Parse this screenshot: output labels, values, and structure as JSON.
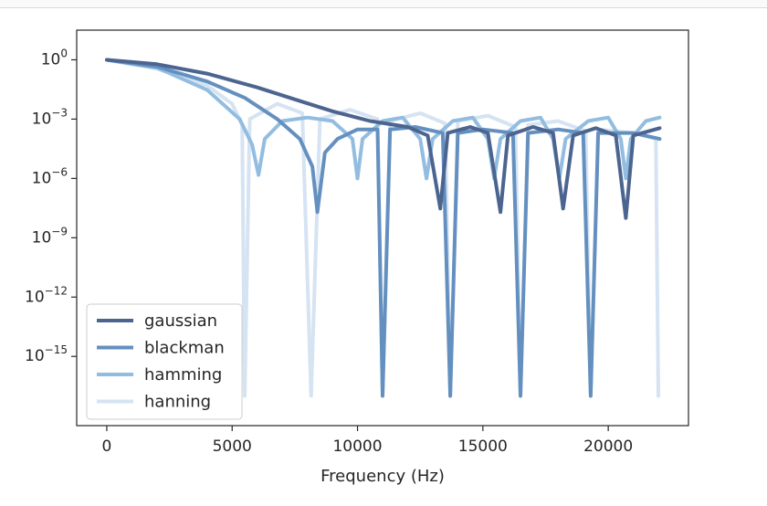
{
  "chart_data": {
    "type": "line",
    "xlabel": "Frequency (Hz)",
    "ylabel": "",
    "xlim": [
      -1200,
      23200
    ],
    "ylim_log10": [
      -18.5,
      1.5
    ],
    "y_scale": "log",
    "grid": false,
    "legend_position": "lower-left",
    "x_ticks": [
      0,
      5000,
      10000,
      15000,
      20000
    ],
    "x_tick_labels": [
      "0",
      "5000",
      "10000",
      "15000",
      "20000"
    ],
    "y_ticks": [
      1,
      0.001,
      1e-06,
      1e-09,
      1e-12,
      1e-15
    ],
    "y_tick_labels": [
      {
        "base": "10",
        "exp": "0"
      },
      {
        "base": "10",
        "exp": "−3"
      },
      {
        "base": "10",
        "exp": "−6"
      },
      {
        "base": "10",
        "exp": "−9"
      },
      {
        "base": "10",
        "exp": "−12"
      },
      {
        "base": "10",
        "exp": "−15"
      }
    ],
    "series": [
      {
        "name": "gaussian",
        "color": "#4c6590",
        "points": [
          [
            0,
            1
          ],
          [
            2000,
            0.6
          ],
          [
            4000,
            0.2
          ],
          [
            6000,
            0.04
          ],
          [
            7500,
            0.01
          ],
          [
            9000,
            0.0025
          ],
          [
            10500,
            0.0008
          ],
          [
            12000,
            0.0004
          ],
          [
            12800,
            0.00015
          ],
          [
            13300,
            3e-08
          ],
          [
            13600,
            0.0002
          ],
          [
            14500,
            0.0004
          ],
          [
            15200,
            0.0002
          ],
          [
            15700,
            2e-08
          ],
          [
            16000,
            0.00015
          ],
          [
            17000,
            0.0004
          ],
          [
            17800,
            0.0002
          ],
          [
            18200,
            3e-08
          ],
          [
            18600,
            0.00015
          ],
          [
            19500,
            0.00035
          ],
          [
            20300,
            0.00015
          ],
          [
            20700,
            1e-08
          ],
          [
            21000,
            0.00015
          ],
          [
            22050,
            0.00035
          ]
        ]
      },
      {
        "name": "blackman",
        "color": "#6490c0",
        "points": [
          [
            0,
            1
          ],
          [
            2000,
            0.45
          ],
          [
            4000,
            0.08
          ],
          [
            5500,
            0.012
          ],
          [
            6800,
            0.001
          ],
          [
            7700,
            0.0001
          ],
          [
            8200,
            4e-06
          ],
          [
            8400,
            2e-08
          ],
          [
            8700,
            2e-05
          ],
          [
            9200,
            0.0001
          ],
          [
            10000,
            0.0003
          ],
          [
            10800,
            0.0003
          ],
          [
            11000,
            1e-17
          ],
          [
            11300,
            0.0003
          ],
          [
            12300,
            0.0004
          ],
          [
            13400,
            0.0002
          ],
          [
            13700,
            1e-17
          ],
          [
            14000,
            0.0002
          ],
          [
            15000,
            0.0003
          ],
          [
            16200,
            0.0002
          ],
          [
            16500,
            1e-17
          ],
          [
            16800,
            0.0002
          ],
          [
            18000,
            0.0003
          ],
          [
            19000,
            0.0002
          ],
          [
            19300,
            1e-17
          ],
          [
            19600,
            0.0002
          ],
          [
            21000,
            0.0002
          ],
          [
            22050,
            0.0001
          ]
        ]
      },
      {
        "name": "hamming",
        "color": "#93bde0",
        "points": [
          [
            0,
            1
          ],
          [
            2000,
            0.4
          ],
          [
            4000,
            0.03
          ],
          [
            5300,
            0.001
          ],
          [
            5800,
            5e-05
          ],
          [
            6050,
            1.5e-06
          ],
          [
            6300,
            0.0001
          ],
          [
            7000,
            0.0008
          ],
          [
            8000,
            0.0012
          ],
          [
            9000,
            0.0008
          ],
          [
            9800,
            0.0001
          ],
          [
            10000,
            1e-06
          ],
          [
            10200,
            0.0001
          ],
          [
            11000,
            0.0008
          ],
          [
            11800,
            0.0012
          ],
          [
            12500,
            0.0001
          ],
          [
            12750,
            1e-06
          ],
          [
            13000,
            0.0001
          ],
          [
            13800,
            0.0008
          ],
          [
            14600,
            0.0012
          ],
          [
            15200,
            0.0001
          ],
          [
            15450,
            1e-06
          ],
          [
            15700,
            0.0001
          ],
          [
            16500,
            0.0008
          ],
          [
            17300,
            0.0012
          ],
          [
            17800,
            0.0001
          ],
          [
            18050,
            1e-06
          ],
          [
            18300,
            0.0001
          ],
          [
            19200,
            0.0008
          ],
          [
            20000,
            0.0012
          ],
          [
            20500,
            0.0001
          ],
          [
            20700,
            1e-06
          ],
          [
            20900,
            0.0001
          ],
          [
            21500,
            0.0008
          ],
          [
            22050,
            0.0012
          ]
        ]
      },
      {
        "name": "hanning",
        "color": "#d5e3f2",
        "points": [
          [
            0,
            1
          ],
          [
            2000,
            0.35
          ],
          [
            4000,
            0.05
          ],
          [
            5000,
            0.006
          ],
          [
            5400,
            0.0005
          ],
          [
            5500,
            1e-17
          ],
          [
            5700,
            0.001
          ],
          [
            6800,
            0.006
          ],
          [
            7800,
            0.002
          ],
          [
            8150,
            1e-17
          ],
          [
            8500,
            0.001
          ],
          [
            9700,
            0.003
          ],
          [
            10800,
            0.001
          ],
          [
            11000,
            1e-17
          ],
          [
            11300,
            0.0008
          ],
          [
            12500,
            0.002
          ],
          [
            13500,
            0.0006
          ],
          [
            13700,
            1e-17
          ],
          [
            14000,
            0.0008
          ],
          [
            15200,
            0.0015
          ],
          [
            16300,
            0.0004
          ],
          [
            16500,
            1e-17
          ],
          [
            16800,
            0.0005
          ],
          [
            18000,
            0.0008
          ],
          [
            19100,
            0.00025
          ],
          [
            19300,
            1e-17
          ],
          [
            19600,
            0.0003
          ],
          [
            21000,
            0.0002
          ],
          [
            21900,
            0.0001
          ],
          [
            22000,
            1e-17
          ]
        ]
      }
    ]
  }
}
